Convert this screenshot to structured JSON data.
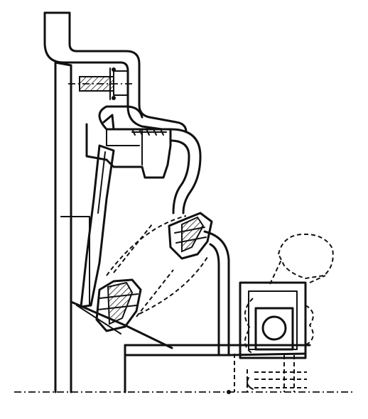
{
  "figure": {
    "labels": [],
    "colors": {
      "ink": "#111111",
      "paper": "#ffffff"
    }
  }
}
